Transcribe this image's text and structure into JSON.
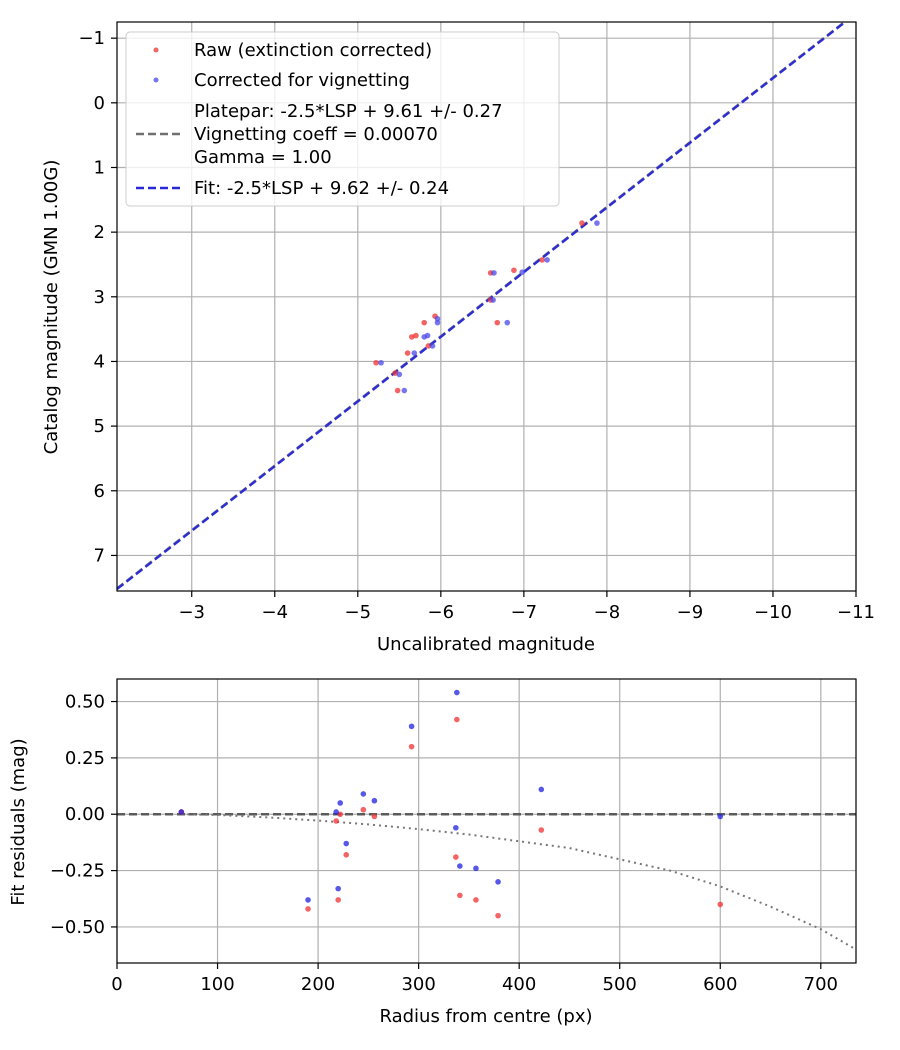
{
  "chart_data": [
    {
      "id": "top",
      "type": "scatter",
      "xlabel": "Uncalibrated magnitude",
      "ylabel": "Catalog magnitude (GMN 1.00G)",
      "xlim": [
        -2.1,
        -11.0
      ],
      "ylim": [
        7.55,
        -1.25
      ],
      "grid": true,
      "x_ticks": [
        -3,
        -4,
        -5,
        -6,
        -7,
        -8,
        -9,
        -10,
        -11
      ],
      "x_tick_labels": [
        "−3",
        "−4",
        "−5",
        "−6",
        "−7",
        "−8",
        "−9",
        "−10",
        "−11"
      ],
      "y_ticks": [
        -1,
        0,
        1,
        2,
        3,
        4,
        5,
        6,
        7
      ],
      "y_tick_labels": [
        "−1",
        "0",
        "1",
        "2",
        "3",
        "4",
        "5",
        "6",
        "7"
      ],
      "legend": {
        "placement": "top-left",
        "entries": [
          {
            "label": "Raw (extinction corrected)",
            "marker": "dot",
            "color": "#f03030"
          },
          {
            "label": "Corrected for vignetting",
            "marker": "dot",
            "color": "#4848e8"
          },
          {
            "label": "Platepar: -2.5*LSP + 9.61 +/- 0.27",
            "label2": "Vignetting coeff = 0.00070",
            "label3": "Gamma = 1.00",
            "marker": "dash",
            "color": "#707070"
          },
          {
            "label": "Fit: -2.5*LSP + 9.62 +/- 0.24",
            "marker": "dash",
            "color": "#2828d8"
          }
        ]
      },
      "series": [
        {
          "name": "Raw (extinction corrected)",
          "color": "#f03030",
          "points": [
            [
              -5.22,
              4.02
            ],
            [
              -5.45,
              4.18
            ],
            [
              -5.48,
              4.45
            ],
            [
              -5.6,
              3.87
            ],
            [
              -5.65,
              3.62
            ],
            [
              -5.7,
              3.6
            ],
            [
              -5.8,
              3.4
            ],
            [
              -5.85,
              3.76
            ],
            [
              -5.93,
              3.3
            ],
            [
              -6.6,
              2.63
            ],
            [
              -6.68,
              3.4
            ],
            [
              -6.88,
              2.59
            ],
            [
              -6.6,
              3.05
            ],
            [
              -7.22,
              2.43
            ],
            [
              -7.7,
              1.86
            ]
          ]
        },
        {
          "name": "Corrected for vignetting",
          "color": "#4848e8",
          "points": [
            [
              -5.28,
              4.02
            ],
            [
              -5.5,
              4.2
            ],
            [
              -5.56,
              4.45
            ],
            [
              -5.68,
              3.87
            ],
            [
              -5.8,
              3.62
            ],
            [
              -5.84,
              3.6
            ],
            [
              -5.96,
              3.4
            ],
            [
              -5.9,
              3.76
            ],
            [
              -5.96,
              3.34
            ],
            [
              -6.64,
              2.63
            ],
            [
              -6.8,
              3.4
            ],
            [
              -6.98,
              2.62
            ],
            [
              -6.63,
              3.05
            ],
            [
              -7.28,
              2.43
            ],
            [
              -7.88,
              1.86
            ]
          ]
        },
        {
          "name": "Platepar: -2.5*LSP + 9.61 +/- 0.27",
          "type": "line",
          "style": "dashed",
          "color": "#707070",
          "x": [
            -2.1,
            -11.0
          ],
          "y": [
            7.51,
            -1.39
          ]
        },
        {
          "name": "Fit: -2.5*LSP + 9.62 +/- 0.24",
          "type": "line",
          "style": "dashed",
          "color": "#2828d8",
          "x": [
            -2.1,
            -11.0
          ],
          "y": [
            7.52,
            -1.38
          ]
        }
      ]
    },
    {
      "id": "bottom",
      "type": "scatter",
      "xlabel": "Radius from centre (px)",
      "ylabel": "Fit residuals (mag)",
      "xlim": [
        0,
        735
      ],
      "ylim": [
        -0.66,
        0.6
      ],
      "grid": true,
      "x_ticks": [
        0,
        100,
        200,
        300,
        400,
        500,
        600,
        700
      ],
      "x_tick_labels": [
        "0",
        "100",
        "200",
        "300",
        "400",
        "500",
        "600",
        "700"
      ],
      "y_ticks": [
        -0.5,
        -0.25,
        0.0,
        0.25,
        0.5
      ],
      "y_tick_labels": [
        "−0.50",
        "−0.25",
        "0.00",
        "0.25",
        "0.50"
      ],
      "series": [
        {
          "name": "Raw (extinction corrected)",
          "color": "#f03030",
          "points": [
            [
              64,
              0.01
            ],
            [
              190,
              -0.42
            ],
            [
              218,
              -0.03
            ],
            [
              220,
              -0.38
            ],
            [
              222,
              0.0
            ],
            [
              228,
              -0.18
            ],
            [
              245,
              0.02
            ],
            [
              256,
              -0.01
            ],
            [
              293,
              0.3
            ],
            [
              337,
              -0.19
            ],
            [
              338,
              0.42
            ],
            [
              341,
              -0.36
            ],
            [
              357,
              -0.38
            ],
            [
              379,
              -0.45
            ],
            [
              422,
              -0.07
            ],
            [
              600,
              -0.4
            ]
          ]
        },
        {
          "name": "Corrected for vignetting",
          "color": "#2020e0",
          "points": [
            [
              64,
              0.01
            ],
            [
              190,
              -0.38
            ],
            [
              218,
              0.01
            ],
            [
              220,
              -0.33
            ],
            [
              222,
              0.05
            ],
            [
              228,
              -0.13
            ],
            [
              245,
              0.09
            ],
            [
              256,
              0.06
            ],
            [
              293,
              0.39
            ],
            [
              337,
              -0.06
            ],
            [
              338,
              0.54
            ],
            [
              341,
              -0.23
            ],
            [
              357,
              -0.24
            ],
            [
              379,
              -0.3
            ],
            [
              422,
              0.11
            ],
            [
              600,
              -0.01
            ]
          ]
        },
        {
          "name": "zero line",
          "type": "line",
          "style": "dashed",
          "color": "#555555",
          "x": [
            0,
            735
          ],
          "y": [
            0,
            0
          ]
        },
        {
          "name": "vignetting curve",
          "type": "line",
          "style": "dotted",
          "color": "#777777",
          "x": [
            64,
            100,
            150,
            200,
            250,
            300,
            350,
            400,
            450,
            500,
            550,
            600,
            650,
            700,
            735
          ],
          "y": [
            0.0,
            -0.003,
            -0.014,
            -0.028,
            -0.045,
            -0.066,
            -0.09,
            -0.12,
            -0.15,
            -0.2,
            -0.25,
            -0.32,
            -0.41,
            -0.51,
            -0.6
          ]
        }
      ]
    }
  ]
}
